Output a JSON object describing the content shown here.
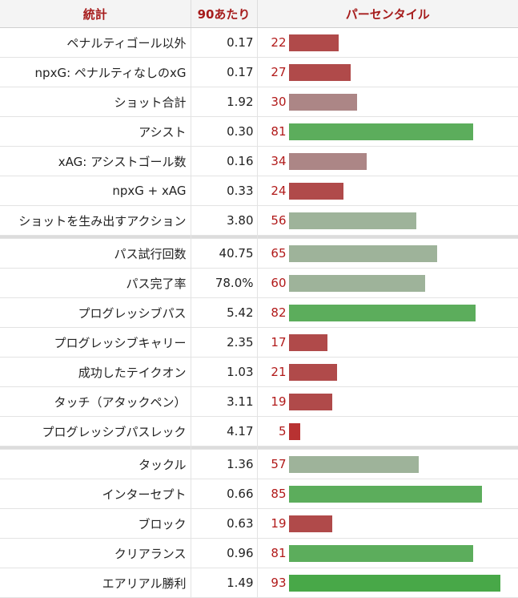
{
  "header": {
    "stat": "統計",
    "per90": "90あたり",
    "percentile": "パーセンタイル"
  },
  "colors": {
    "low": "#b04a4a",
    "mid": "#9eb39a",
    "high": "#5cad5c",
    "header_text": "#a61c1c"
  },
  "groups": [
    [
      {
        "stat": "ペナルティゴール以外",
        "value": "0.17",
        "pct": 22
      },
      {
        "stat": "npxG: ペナルティなしのxG",
        "value": "0.17",
        "pct": 27
      },
      {
        "stat": "ショット合計",
        "value": "1.92",
        "pct": 30
      },
      {
        "stat": "アシスト",
        "value": "0.30",
        "pct": 81
      },
      {
        "stat": "xAG: アシストゴール数",
        "value": "0.16",
        "pct": 34
      },
      {
        "stat": "npxG + xAG",
        "value": "0.33",
        "pct": 24
      },
      {
        "stat": "ショットを生み出すアクション",
        "value": "3.80",
        "pct": 56
      }
    ],
    [
      {
        "stat": "パス試行回数",
        "value": "40.75",
        "pct": 65
      },
      {
        "stat": "パス完了率",
        "value": "78.0%",
        "pct": 60
      },
      {
        "stat": "プログレッシブパス",
        "value": "5.42",
        "pct": 82
      },
      {
        "stat": "プログレッシブキャリー",
        "value": "2.35",
        "pct": 17
      },
      {
        "stat": "成功したテイクオン",
        "value": "1.03",
        "pct": 21
      },
      {
        "stat": "タッチ（アタックペン）",
        "value": "3.11",
        "pct": 19
      },
      {
        "stat": "プログレッシブパスレック",
        "value": "4.17",
        "pct": 5
      }
    ],
    [
      {
        "stat": "タックル",
        "value": "1.36",
        "pct": 57
      },
      {
        "stat": "インターセプト",
        "value": "0.66",
        "pct": 85
      },
      {
        "stat": "ブロック",
        "value": "0.63",
        "pct": 19
      },
      {
        "stat": "クリアランス",
        "value": "0.96",
        "pct": 81
      },
      {
        "stat": "エアリアル勝利",
        "value": "1.49",
        "pct": 93
      }
    ]
  ]
}
